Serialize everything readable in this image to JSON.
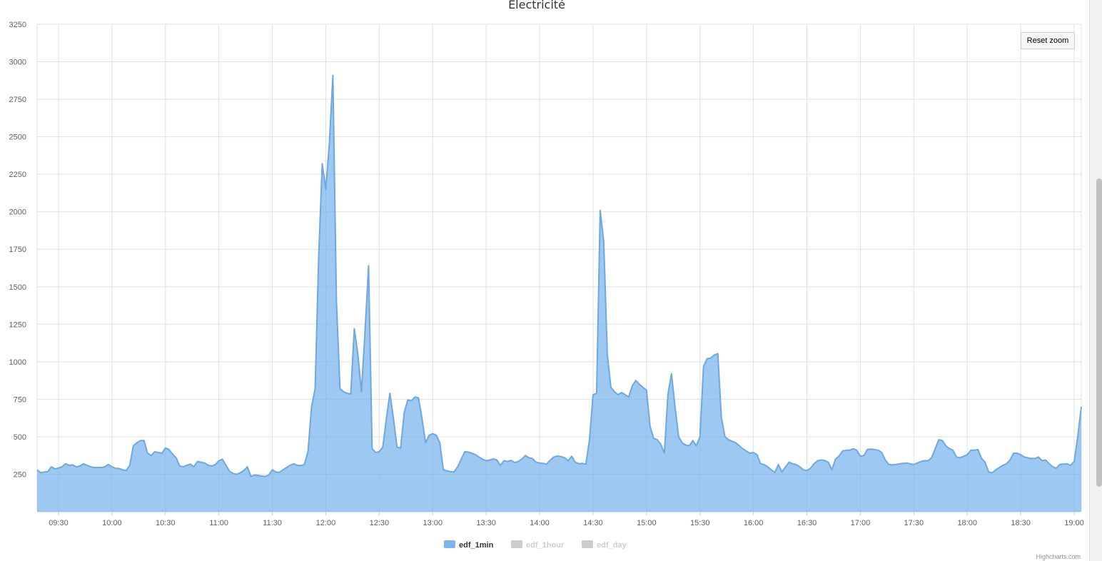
{
  "chart_data": {
    "type": "area",
    "title": "Electricité",
    "ylabel": "",
    "ylim": [
      0,
      3250
    ],
    "yticks": [
      250,
      500,
      750,
      1000,
      1250,
      1500,
      1750,
      2000,
      2250,
      2500,
      2750,
      3000,
      3250
    ],
    "xlim": [
      "09:18",
      "19:04"
    ],
    "xticks": [
      "09:30",
      "10:00",
      "10:30",
      "11:00",
      "11:30",
      "12:00",
      "12:30",
      "13:00",
      "13:30",
      "14:00",
      "14:30",
      "15:00",
      "15:30",
      "16:00",
      "16:30",
      "17:00",
      "17:30",
      "18:00",
      "18:30",
      "19:00"
    ],
    "grid": true,
    "legend_position": "bottom-center",
    "series": [
      {
        "name": "edf_1min",
        "visible": true,
        "color": "#7cb5ec",
        "points": [
          [
            "09:18",
            280
          ],
          [
            "09:20",
            260
          ],
          [
            "09:22",
            265
          ],
          [
            "09:24",
            268
          ],
          [
            "09:26",
            300
          ],
          [
            "09:28",
            285
          ],
          [
            "09:30",
            292
          ],
          [
            "09:32",
            300
          ],
          [
            "09:34",
            320
          ],
          [
            "09:36",
            310
          ],
          [
            "09:38",
            312
          ],
          [
            "09:40",
            300
          ],
          [
            "09:42",
            305
          ],
          [
            "09:44",
            320
          ],
          [
            "09:46",
            310
          ],
          [
            "09:48",
            300
          ],
          [
            "09:50",
            295
          ],
          [
            "09:54",
            295
          ],
          [
            "09:56",
            300
          ],
          [
            "09:58",
            315
          ],
          [
            "10:00",
            300
          ],
          [
            "10:02",
            290
          ],
          [
            "10:04",
            288
          ],
          [
            "10:06",
            280
          ],
          [
            "10:08",
            275
          ],
          [
            "10:10",
            310
          ],
          [
            "10:12",
            440
          ],
          [
            "10:14",
            460
          ],
          [
            "10:16",
            475
          ],
          [
            "10:18",
            475
          ],
          [
            "10:20",
            390
          ],
          [
            "10:22",
            375
          ],
          [
            "10:24",
            400
          ],
          [
            "10:26",
            395
          ],
          [
            "10:28",
            390
          ],
          [
            "10:30",
            425
          ],
          [
            "10:32",
            415
          ],
          [
            "10:34",
            385
          ],
          [
            "10:36",
            360
          ],
          [
            "10:38",
            305
          ],
          [
            "10:40",
            300
          ],
          [
            "10:42",
            310
          ],
          [
            "10:44",
            318
          ],
          [
            "10:46",
            300
          ],
          [
            "10:48",
            335
          ],
          [
            "10:50",
            330
          ],
          [
            "10:52",
            325
          ],
          [
            "10:54",
            310
          ],
          [
            "10:56",
            305
          ],
          [
            "10:58",
            315
          ],
          [
            "11:00",
            340
          ],
          [
            "11:02",
            350
          ],
          [
            "11:04",
            310
          ],
          [
            "11:06",
            270
          ],
          [
            "11:08",
            255
          ],
          [
            "11:10",
            250
          ],
          [
            "11:12",
            260
          ],
          [
            "11:14",
            275
          ],
          [
            "11:16",
            300
          ],
          [
            "11:18",
            235
          ],
          [
            "11:20",
            245
          ],
          [
            "11:22",
            242
          ],
          [
            "11:24",
            238
          ],
          [
            "11:26",
            235
          ],
          [
            "11:28",
            245
          ],
          [
            "11:30",
            280
          ],
          [
            "11:32",
            265
          ],
          [
            "11:34",
            262
          ],
          [
            "11:36",
            280
          ],
          [
            "11:38",
            295
          ],
          [
            "11:40",
            310
          ],
          [
            "11:42",
            320
          ],
          [
            "11:44",
            310
          ],
          [
            "11:46",
            308
          ],
          [
            "11:48",
            315
          ],
          [
            "11:50",
            400
          ],
          [
            "11:52",
            700
          ],
          [
            "11:54",
            820
          ],
          [
            "11:56",
            1700
          ],
          [
            "11:58",
            2320
          ],
          [
            "12:00",
            2150
          ],
          [
            "12:02",
            2450
          ],
          [
            "12:04",
            2910
          ],
          [
            "12:06",
            1400
          ],
          [
            "12:08",
            820
          ],
          [
            "12:10",
            800
          ],
          [
            "12:12",
            790
          ],
          [
            "12:14",
            785
          ],
          [
            "12:16",
            1220
          ],
          [
            "12:18",
            1050
          ],
          [
            "12:20",
            800
          ],
          [
            "12:22",
            1200
          ],
          [
            "12:24",
            1640
          ],
          [
            "12:26",
            420
          ],
          [
            "12:28",
            395
          ],
          [
            "12:30",
            400
          ],
          [
            "12:32",
            430
          ],
          [
            "12:34",
            620
          ],
          [
            "12:36",
            790
          ],
          [
            "12:38",
            620
          ],
          [
            "12:40",
            430
          ],
          [
            "12:42",
            425
          ],
          [
            "12:44",
            660
          ],
          [
            "12:46",
            745
          ],
          [
            "12:48",
            740
          ],
          [
            "12:50",
            765
          ],
          [
            "12:52",
            760
          ],
          [
            "12:54",
            620
          ],
          [
            "12:56",
            460
          ],
          [
            "12:58",
            510
          ],
          [
            "13:00",
            520
          ],
          [
            "13:02",
            510
          ],
          [
            "13:04",
            460
          ],
          [
            "13:06",
            280
          ],
          [
            "13:08",
            272
          ],
          [
            "13:10",
            268
          ],
          [
            "13:12",
            265
          ],
          [
            "13:14",
            300
          ],
          [
            "13:16",
            350
          ],
          [
            "13:18",
            400
          ],
          [
            "13:20",
            398
          ],
          [
            "13:22",
            390
          ],
          [
            "13:24",
            380
          ],
          [
            "13:26",
            365
          ],
          [
            "13:28",
            350
          ],
          [
            "13:30",
            340
          ],
          [
            "13:32",
            345
          ],
          [
            "13:34",
            352
          ],
          [
            "13:36",
            345
          ],
          [
            "13:38",
            310
          ],
          [
            "13:40",
            340
          ],
          [
            "13:42",
            335
          ],
          [
            "13:44",
            342
          ],
          [
            "13:46",
            328
          ],
          [
            "13:48",
            335
          ],
          [
            "13:50",
            350
          ],
          [
            "13:52",
            375
          ],
          [
            "13:54",
            360
          ],
          [
            "13:56",
            355
          ],
          [
            "13:58",
            330
          ],
          [
            "14:00",
            325
          ],
          [
            "14:02",
            322
          ],
          [
            "14:04",
            318
          ],
          [
            "14:06",
            345
          ],
          [
            "14:08",
            365
          ],
          [
            "14:10",
            372
          ],
          [
            "14:12",
            368
          ],
          [
            "14:14",
            360
          ],
          [
            "14:16",
            340
          ],
          [
            "14:18",
            370
          ],
          [
            "14:20",
            330
          ],
          [
            "14:22",
            320
          ],
          [
            "14:24",
            322
          ],
          [
            "14:26",
            318
          ],
          [
            "14:28",
            480
          ],
          [
            "14:30",
            780
          ],
          [
            "14:32",
            790
          ],
          [
            "14:34",
            2010
          ],
          [
            "14:36",
            1800
          ],
          [
            "14:38",
            1050
          ],
          [
            "14:40",
            830
          ],
          [
            "14:42",
            800
          ],
          [
            "14:44",
            780
          ],
          [
            "14:46",
            795
          ],
          [
            "14:48",
            780
          ],
          [
            "14:50",
            765
          ],
          [
            "14:52",
            840
          ],
          [
            "14:54",
            875
          ],
          [
            "14:56",
            850
          ],
          [
            "14:58",
            830
          ],
          [
            "15:00",
            810
          ],
          [
            "15:02",
            570
          ],
          [
            "15:04",
            490
          ],
          [
            "15:06",
            480
          ],
          [
            "15:08",
            450
          ],
          [
            "15:10",
            390
          ],
          [
            "15:12",
            780
          ],
          [
            "15:14",
            920
          ],
          [
            "15:16",
            700
          ],
          [
            "15:18",
            500
          ],
          [
            "15:20",
            460
          ],
          [
            "15:22",
            445
          ],
          [
            "15:24",
            440
          ],
          [
            "15:26",
            475
          ],
          [
            "15:28",
            440
          ],
          [
            "15:30",
            500
          ],
          [
            "15:32",
            970
          ],
          [
            "15:34",
            1020
          ],
          [
            "15:36",
            1025
          ],
          [
            "15:38",
            1045
          ],
          [
            "15:40",
            1055
          ],
          [
            "15:42",
            630
          ],
          [
            "15:44",
            500
          ],
          [
            "15:46",
            480
          ],
          [
            "15:48",
            470
          ],
          [
            "15:50",
            460
          ],
          [
            "15:52",
            440
          ],
          [
            "15:54",
            420
          ],
          [
            "15:56",
            405
          ],
          [
            "15:58",
            390
          ],
          [
            "16:00",
            395
          ],
          [
            "16:02",
            380
          ],
          [
            "16:04",
            320
          ],
          [
            "16:06",
            315
          ],
          [
            "16:08",
            300
          ],
          [
            "16:10",
            280
          ],
          [
            "16:12",
            262
          ],
          [
            "16:14",
            315
          ],
          [
            "16:16",
            265
          ],
          [
            "16:18",
            300
          ],
          [
            "16:20",
            330
          ],
          [
            "16:22",
            320
          ],
          [
            "16:24",
            315
          ],
          [
            "16:26",
            300
          ],
          [
            "16:28",
            280
          ],
          [
            "16:30",
            275
          ],
          [
            "16:32",
            290
          ],
          [
            "16:34",
            320
          ],
          [
            "16:36",
            340
          ],
          [
            "16:38",
            345
          ],
          [
            "16:40",
            342
          ],
          [
            "16:42",
            330
          ],
          [
            "16:44",
            280
          ],
          [
            "16:46",
            350
          ],
          [
            "16:48",
            370
          ],
          [
            "16:50",
            405
          ],
          [
            "16:52",
            410
          ],
          [
            "16:54",
            410
          ],
          [
            "16:56",
            420
          ],
          [
            "16:58",
            410
          ],
          [
            "17:00",
            370
          ],
          [
            "17:02",
            375
          ],
          [
            "17:04",
            415
          ],
          [
            "17:06",
            418
          ],
          [
            "17:08",
            415
          ],
          [
            "17:10",
            410
          ],
          [
            "17:12",
            395
          ],
          [
            "17:14",
            345
          ],
          [
            "17:16",
            315
          ],
          [
            "17:18",
            312
          ],
          [
            "17:20",
            315
          ],
          [
            "17:22",
            320
          ],
          [
            "17:24",
            322
          ],
          [
            "17:26",
            325
          ],
          [
            "17:28",
            320
          ],
          [
            "17:30",
            315
          ],
          [
            "17:32",
            325
          ],
          [
            "17:34",
            335
          ],
          [
            "17:36",
            340
          ],
          [
            "17:38",
            340
          ],
          [
            "17:40",
            360
          ],
          [
            "17:42",
            420
          ],
          [
            "17:44",
            480
          ],
          [
            "17:46",
            475
          ],
          [
            "17:48",
            440
          ],
          [
            "17:50",
            420
          ],
          [
            "17:52",
            410
          ],
          [
            "17:54",
            365
          ],
          [
            "17:56",
            360
          ],
          [
            "17:58",
            370
          ],
          [
            "18:00",
            380
          ],
          [
            "18:02",
            410
          ],
          [
            "18:04",
            410
          ],
          [
            "18:06",
            415
          ],
          [
            "18:08",
            355
          ],
          [
            "18:10",
            330
          ],
          [
            "18:12",
            265
          ],
          [
            "18:14",
            260
          ],
          [
            "18:16",
            280
          ],
          [
            "18:18",
            295
          ],
          [
            "18:20",
            310
          ],
          [
            "18:22",
            320
          ],
          [
            "18:24",
            345
          ],
          [
            "18:26",
            390
          ],
          [
            "18:28",
            390
          ],
          [
            "18:30",
            380
          ],
          [
            "18:32",
            365
          ],
          [
            "18:34",
            360
          ],
          [
            "18:36",
            355
          ],
          [
            "18:38",
            355
          ],
          [
            "18:40",
            365
          ],
          [
            "18:42",
            340
          ],
          [
            "18:44",
            345
          ],
          [
            "18:46",
            320
          ],
          [
            "18:48",
            300
          ],
          [
            "18:50",
            290
          ],
          [
            "18:52",
            315
          ],
          [
            "18:54",
            318
          ],
          [
            "18:56",
            320
          ],
          [
            "18:58",
            310
          ],
          [
            "19:00",
            335
          ],
          [
            "19:02",
            500
          ],
          [
            "19:04",
            700
          ]
        ]
      },
      {
        "name": "edf_1hour",
        "visible": false,
        "color": "#cccccc"
      },
      {
        "name": "edf_day",
        "visible": false,
        "color": "#cccccc"
      }
    ]
  },
  "controls": {
    "reset_zoom_label": "Reset zoom"
  },
  "credits": "Highcharts.com",
  "colors": {
    "area_fill": "#7cb5ec",
    "area_line": "#6fa8dc",
    "grid": "#e0e0e0",
    "hidden_series": "#cccccc"
  }
}
